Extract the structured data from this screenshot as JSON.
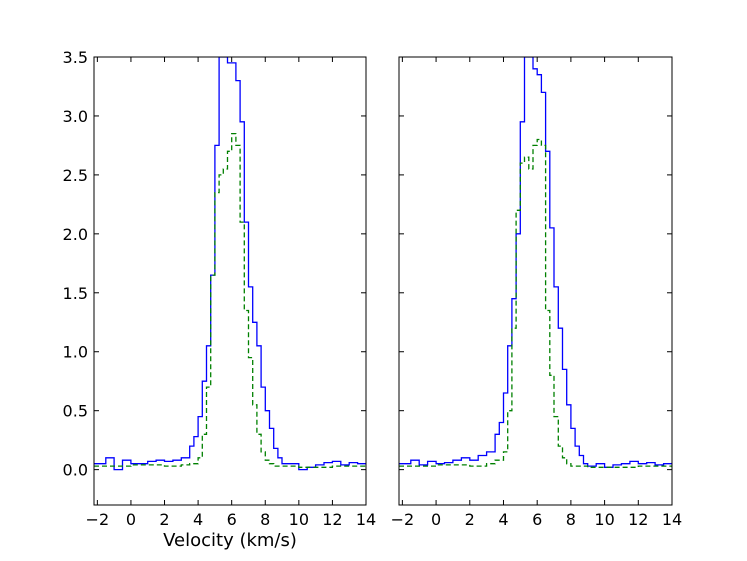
{
  "chart_data": [
    {
      "type": "line",
      "panel": "left",
      "xlabel": "Velocity (km/s)",
      "ylabel": "",
      "xlim": [
        -2.2,
        14
      ],
      "ylim": [
        -0.3,
        3.5
      ],
      "xticks": [
        -2,
        0,
        2,
        4,
        6,
        8,
        10,
        12,
        14
      ],
      "xtick_labels": [
        "−2",
        "0",
        "2",
        "4",
        "6",
        "8",
        "10",
        "12",
        "14"
      ],
      "yticks": [
        0.0,
        0.5,
        1.0,
        1.5,
        2.0,
        2.5,
        3.0,
        3.5
      ],
      "ytick_labels": [
        "0.0",
        "0.5",
        "1.0",
        "1.5",
        "2.0",
        "2.5",
        "3.0",
        "3.5"
      ],
      "grid": false,
      "series": [
        {
          "style": "solid-step",
          "color": "#0000ff",
          "x": [
            -2.0,
            -1.5,
            -1.0,
            -0.5,
            0.0,
            0.5,
            1.0,
            1.5,
            2.0,
            2.5,
            3.0,
            3.5,
            3.75,
            4.0,
            4.25,
            4.5,
            4.75,
            5.0,
            5.25,
            5.5,
            5.75,
            6.0,
            6.25,
            6.5,
            6.75,
            7.0,
            7.25,
            7.5,
            7.75,
            8.0,
            8.25,
            8.5,
            8.75,
            9.0,
            9.5,
            10.0,
            10.5,
            11.0,
            11.5,
            12.0,
            12.5,
            13.0,
            13.5,
            14.0
          ],
          "y": [
            0.05,
            0.1,
            0.0,
            0.08,
            0.05,
            0.05,
            0.07,
            0.08,
            0.07,
            0.08,
            0.1,
            0.2,
            0.28,
            0.45,
            0.75,
            1.05,
            1.65,
            2.75,
            3.5,
            3.5,
            3.45,
            3.45,
            3.3,
            2.95,
            2.1,
            1.55,
            1.25,
            1.05,
            0.7,
            0.5,
            0.35,
            0.18,
            0.1,
            0.05,
            0.05,
            0.0,
            0.02,
            0.04,
            0.06,
            0.07,
            0.04,
            0.06,
            0.05,
            0.05
          ]
        },
        {
          "style": "dashed-step",
          "color": "#008000",
          "x": [
            -2.0,
            0.0,
            2.0,
            3.0,
            3.5,
            4.0,
            4.25,
            4.5,
            4.75,
            5.0,
            5.25,
            5.5,
            5.75,
            6.0,
            6.25,
            6.5,
            6.75,
            7.0,
            7.25,
            7.5,
            7.75,
            8.0,
            8.25,
            8.5,
            9.0,
            10.0,
            12.0,
            14.0
          ],
          "y": [
            0.03,
            0.04,
            0.03,
            0.04,
            0.05,
            0.1,
            0.3,
            0.7,
            1.65,
            2.35,
            2.5,
            2.55,
            2.7,
            2.85,
            2.75,
            2.1,
            1.35,
            0.95,
            0.55,
            0.3,
            0.15,
            0.08,
            0.05,
            0.03,
            0.03,
            0.02,
            0.03,
            0.02
          ]
        }
      ]
    },
    {
      "type": "line",
      "panel": "right",
      "xlabel": "",
      "ylabel": "",
      "xlim": [
        -2.2,
        14
      ],
      "ylim": [
        -0.3,
        3.5
      ],
      "xticks": [
        -2,
        0,
        2,
        4,
        6,
        8,
        10,
        12,
        14
      ],
      "xtick_labels": [
        "−2",
        "0",
        "2",
        "4",
        "6",
        "8",
        "10",
        "12",
        "14"
      ],
      "grid": false,
      "series": [
        {
          "style": "solid-step",
          "color": "#0000ff",
          "x": [
            -2.0,
            -1.5,
            -1.0,
            -0.5,
            0.0,
            0.5,
            1.0,
            1.5,
            2.0,
            2.5,
            3.0,
            3.5,
            3.75,
            4.0,
            4.25,
            4.5,
            4.75,
            5.0,
            5.25,
            5.5,
            5.75,
            6.0,
            6.25,
            6.5,
            6.75,
            7.0,
            7.25,
            7.5,
            7.75,
            8.0,
            8.25,
            8.5,
            8.75,
            9.0,
            9.5,
            10.0,
            10.5,
            11.0,
            11.5,
            12.0,
            12.5,
            13.0,
            13.5,
            14.0
          ],
          "y": [
            0.05,
            0.08,
            0.04,
            0.07,
            0.05,
            0.06,
            0.08,
            0.1,
            0.08,
            0.12,
            0.15,
            0.3,
            0.4,
            0.65,
            1.05,
            1.45,
            2.0,
            2.95,
            3.5,
            3.5,
            3.4,
            3.35,
            3.2,
            2.7,
            2.05,
            1.55,
            1.2,
            0.85,
            0.55,
            0.35,
            0.2,
            0.12,
            0.05,
            0.03,
            0.05,
            0.02,
            0.04,
            0.05,
            0.07,
            0.05,
            0.06,
            0.04,
            0.05,
            0.06
          ]
        },
        {
          "style": "dashed-step",
          "color": "#008000",
          "x": [
            -2.0,
            0.0,
            2.0,
            3.0,
            3.5,
            4.0,
            4.25,
            4.5,
            4.75,
            5.0,
            5.25,
            5.5,
            5.75,
            6.0,
            6.25,
            6.5,
            6.75,
            7.0,
            7.25,
            7.5,
            7.75,
            8.0,
            8.5,
            9.0,
            10.0,
            12.0,
            14.0
          ],
          "y": [
            0.03,
            0.04,
            0.03,
            0.05,
            0.08,
            0.15,
            0.5,
            1.2,
            2.2,
            2.6,
            2.65,
            2.55,
            2.75,
            2.8,
            2.75,
            1.35,
            0.8,
            0.45,
            0.2,
            0.1,
            0.05,
            0.03,
            0.03,
            0.02,
            0.02,
            0.03,
            0.02
          ]
        }
      ]
    }
  ]
}
